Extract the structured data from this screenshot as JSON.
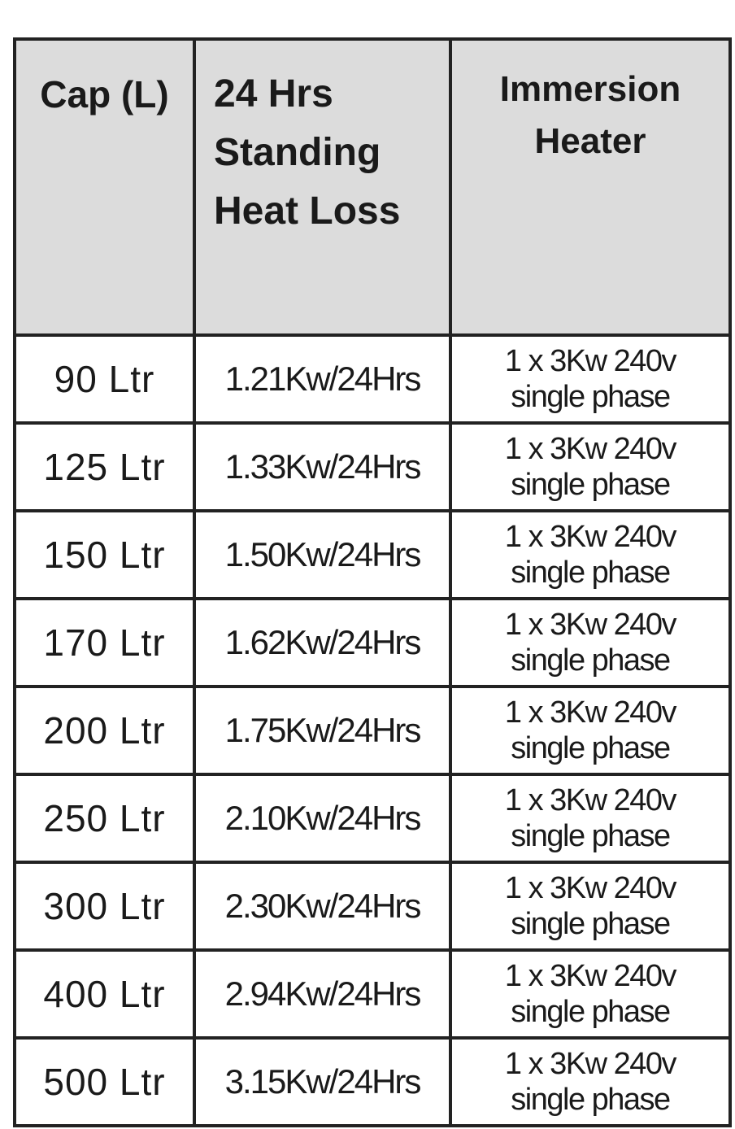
{
  "table": {
    "header": [
      [
        "Cap (L)"
      ],
      [
        "24 Hrs",
        "Standing",
        "Heat Loss"
      ],
      [
        "Immersion",
        "Heater"
      ]
    ],
    "rows": [
      [
        "90 Ltr",
        "1.21Kw/24Hrs",
        [
          "1 x 3Kw 240v",
          "single phase"
        ]
      ],
      [
        "125 Ltr",
        "1.33Kw/24Hrs",
        [
          "1 x 3Kw 240v",
          "single phase"
        ]
      ],
      [
        "150 Ltr",
        "1.50Kw/24Hrs",
        [
          "1 x 3Kw 240v",
          "single phase"
        ]
      ],
      [
        "170 Ltr",
        "1.62Kw/24Hrs",
        [
          "1 x 3Kw 240v",
          "single phase"
        ]
      ],
      [
        "200 Ltr",
        "1.75Kw/24Hrs",
        [
          "1 x 3Kw 240v",
          "single phase"
        ]
      ],
      [
        "250 Ltr",
        "2.10Kw/24Hrs",
        [
          "1 x 3Kw 240v",
          "single phase"
        ]
      ],
      [
        "300 Ltr",
        "2.30Kw/24Hrs",
        [
          "1 x 3Kw 240v",
          "single phase"
        ]
      ],
      [
        "400 Ltr",
        "2.94Kw/24Hrs",
        [
          "1 x 3Kw 240v",
          "single phase"
        ]
      ],
      [
        "500 Ltr",
        "3.15Kw/24Hrs",
        [
          "1 x 3Kw 240v",
          "single phase"
        ]
      ]
    ]
  }
}
